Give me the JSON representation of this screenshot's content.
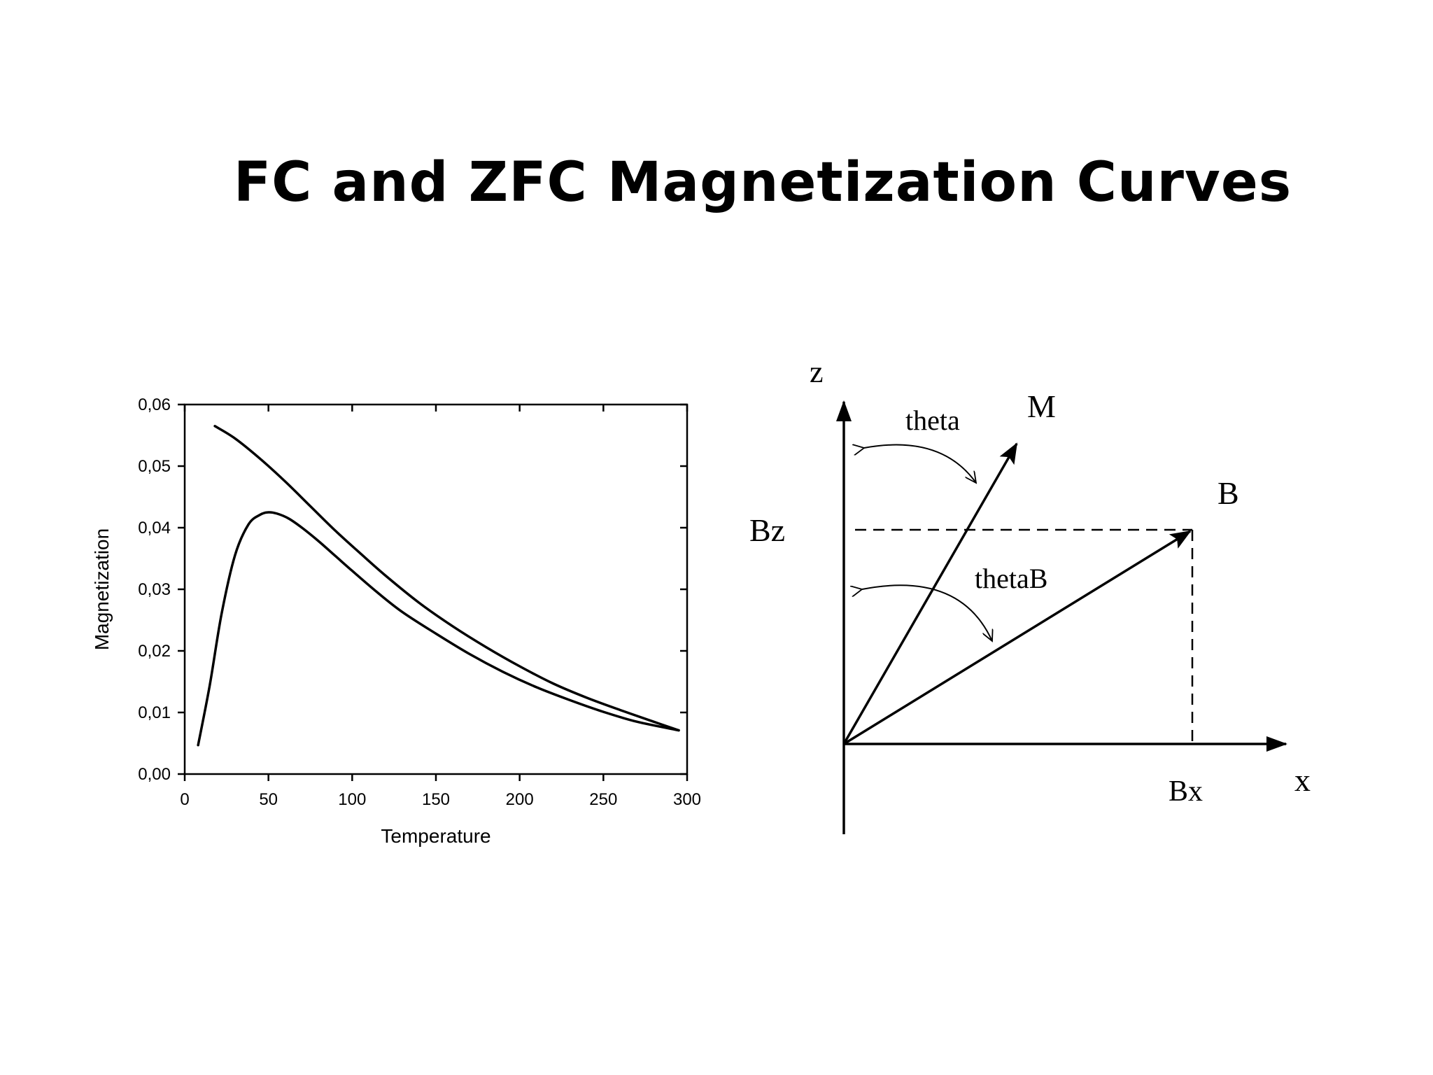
{
  "slide": {
    "title": "FC and ZFC Magnetization Curves"
  },
  "chart_data": {
    "type": "line",
    "title": "",
    "xlabel": "Temperature",
    "ylabel": "Magnetization",
    "xlim": [
      0,
      300
    ],
    "ylim": [
      0,
      0.06
    ],
    "x_ticks": [
      0,
      50,
      100,
      150,
      200,
      250,
      300
    ],
    "x_tick_labels": [
      "0",
      "50",
      "100",
      "150",
      "200",
      "250",
      "300"
    ],
    "y_ticks": [
      0,
      0.01,
      0.02,
      0.03,
      0.04,
      0.05,
      0.06
    ],
    "y_tick_labels": [
      "0,00",
      "0,01",
      "0,02",
      "0,03",
      "0,04",
      "0,05",
      "0,06"
    ],
    "grid": false,
    "legend": "none",
    "series": [
      {
        "x": [
          18,
          30,
          45,
          60,
          75,
          90,
          105,
          120,
          140,
          160,
          180,
          200,
          220,
          240,
          260,
          280,
          295
        ],
        "y": [
          0.0565,
          0.0545,
          0.0512,
          0.0475,
          0.0435,
          0.0395,
          0.0358,
          0.0322,
          0.0278,
          0.024,
          0.0206,
          0.0175,
          0.0147,
          0.0124,
          0.0104,
          0.0085,
          0.0071
        ]
      },
      {
        "x": [
          8,
          15,
          22,
          30,
          38,
          45,
          50,
          55,
          62,
          70,
          80,
          90,
          100,
          115,
          130,
          150,
          170,
          190,
          210,
          230,
          250,
          270,
          295
        ],
        "y": [
          0.0047,
          0.0145,
          0.026,
          0.0355,
          0.0405,
          0.0421,
          0.0425,
          0.0423,
          0.0415,
          0.04,
          0.0378,
          0.0354,
          0.033,
          0.0295,
          0.0263,
          0.0228,
          0.0195,
          0.0166,
          0.0141,
          0.012,
          0.0101,
          0.0085,
          0.0071
        ]
      }
    ]
  },
  "diagram": {
    "axis_z_label": "z",
    "axis_x_label": "x",
    "vector_m_label": "M",
    "vector_b_label": "B",
    "angle_theta_label": "theta",
    "angle_thetab_label": "thetaB",
    "component_bz_label": "Bz",
    "component_bx_label": "Bx"
  }
}
